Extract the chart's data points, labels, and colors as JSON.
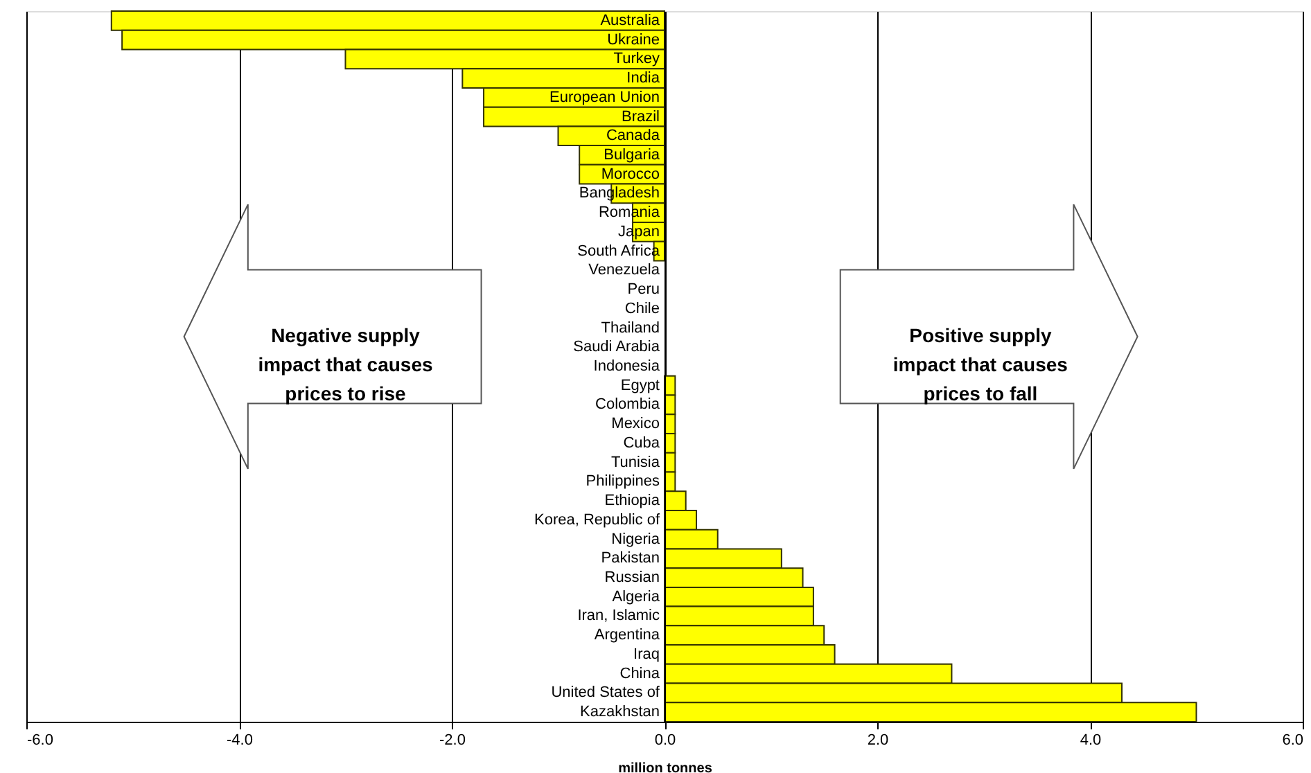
{
  "chart_data": {
    "type": "bar",
    "orientation": "horizontal",
    "xlabel": "million tonnes",
    "categories": [
      "Australia",
      "Ukraine",
      "Turkey",
      "India",
      "European Union",
      "Brazil",
      "Canada",
      "Bulgaria",
      "Morocco",
      "Bangladesh",
      "Romania",
      "Japan",
      "South Africa",
      "Venezuela",
      "Peru",
      "Chile",
      "Thailand",
      "Saudi Arabia",
      "Indonesia",
      "Egypt",
      "Colombia",
      "Mexico",
      "Cuba",
      "Tunisia",
      "Philippines",
      "Ethiopia",
      "Korea, Republic of",
      "Nigeria",
      "Pakistan",
      "Russian",
      "Algeria",
      "Iran, Islamic",
      "Argentina",
      "Iraq",
      "China",
      "United States of",
      "Kazakhstan"
    ],
    "values": [
      -5.2,
      -5.1,
      -3.0,
      -1.9,
      -1.7,
      -1.7,
      -1.0,
      -0.8,
      -0.8,
      -0.5,
      -0.3,
      -0.3,
      -0.1,
      0,
      0,
      0,
      0,
      0,
      0,
      0.1,
      0.1,
      0.1,
      0.1,
      0.1,
      0.1,
      0.2,
      0.3,
      0.5,
      1.1,
      1.3,
      1.4,
      1.4,
      1.5,
      1.6,
      2.7,
      4.3,
      5.0
    ],
    "color": "#ffff00",
    "xlim": [
      -6,
      6
    ],
    "xticks": [
      {
        "value": -6,
        "label": "-6.0"
      },
      {
        "value": -4,
        "label": "-4.0"
      },
      {
        "value": -2,
        "label": "-2.0"
      },
      {
        "value": 0,
        "label": "0.0"
      },
      {
        "value": 2,
        "label": "2.0"
      },
      {
        "value": 4,
        "label": "4.0"
      },
      {
        "value": 6,
        "label": "6.0"
      }
    ],
    "grid": "x",
    "annotations": [
      "Negative supply\nimpact that causes\nprices to rise",
      "Positive supply\nimpact that causes\nprices to fall"
    ]
  }
}
